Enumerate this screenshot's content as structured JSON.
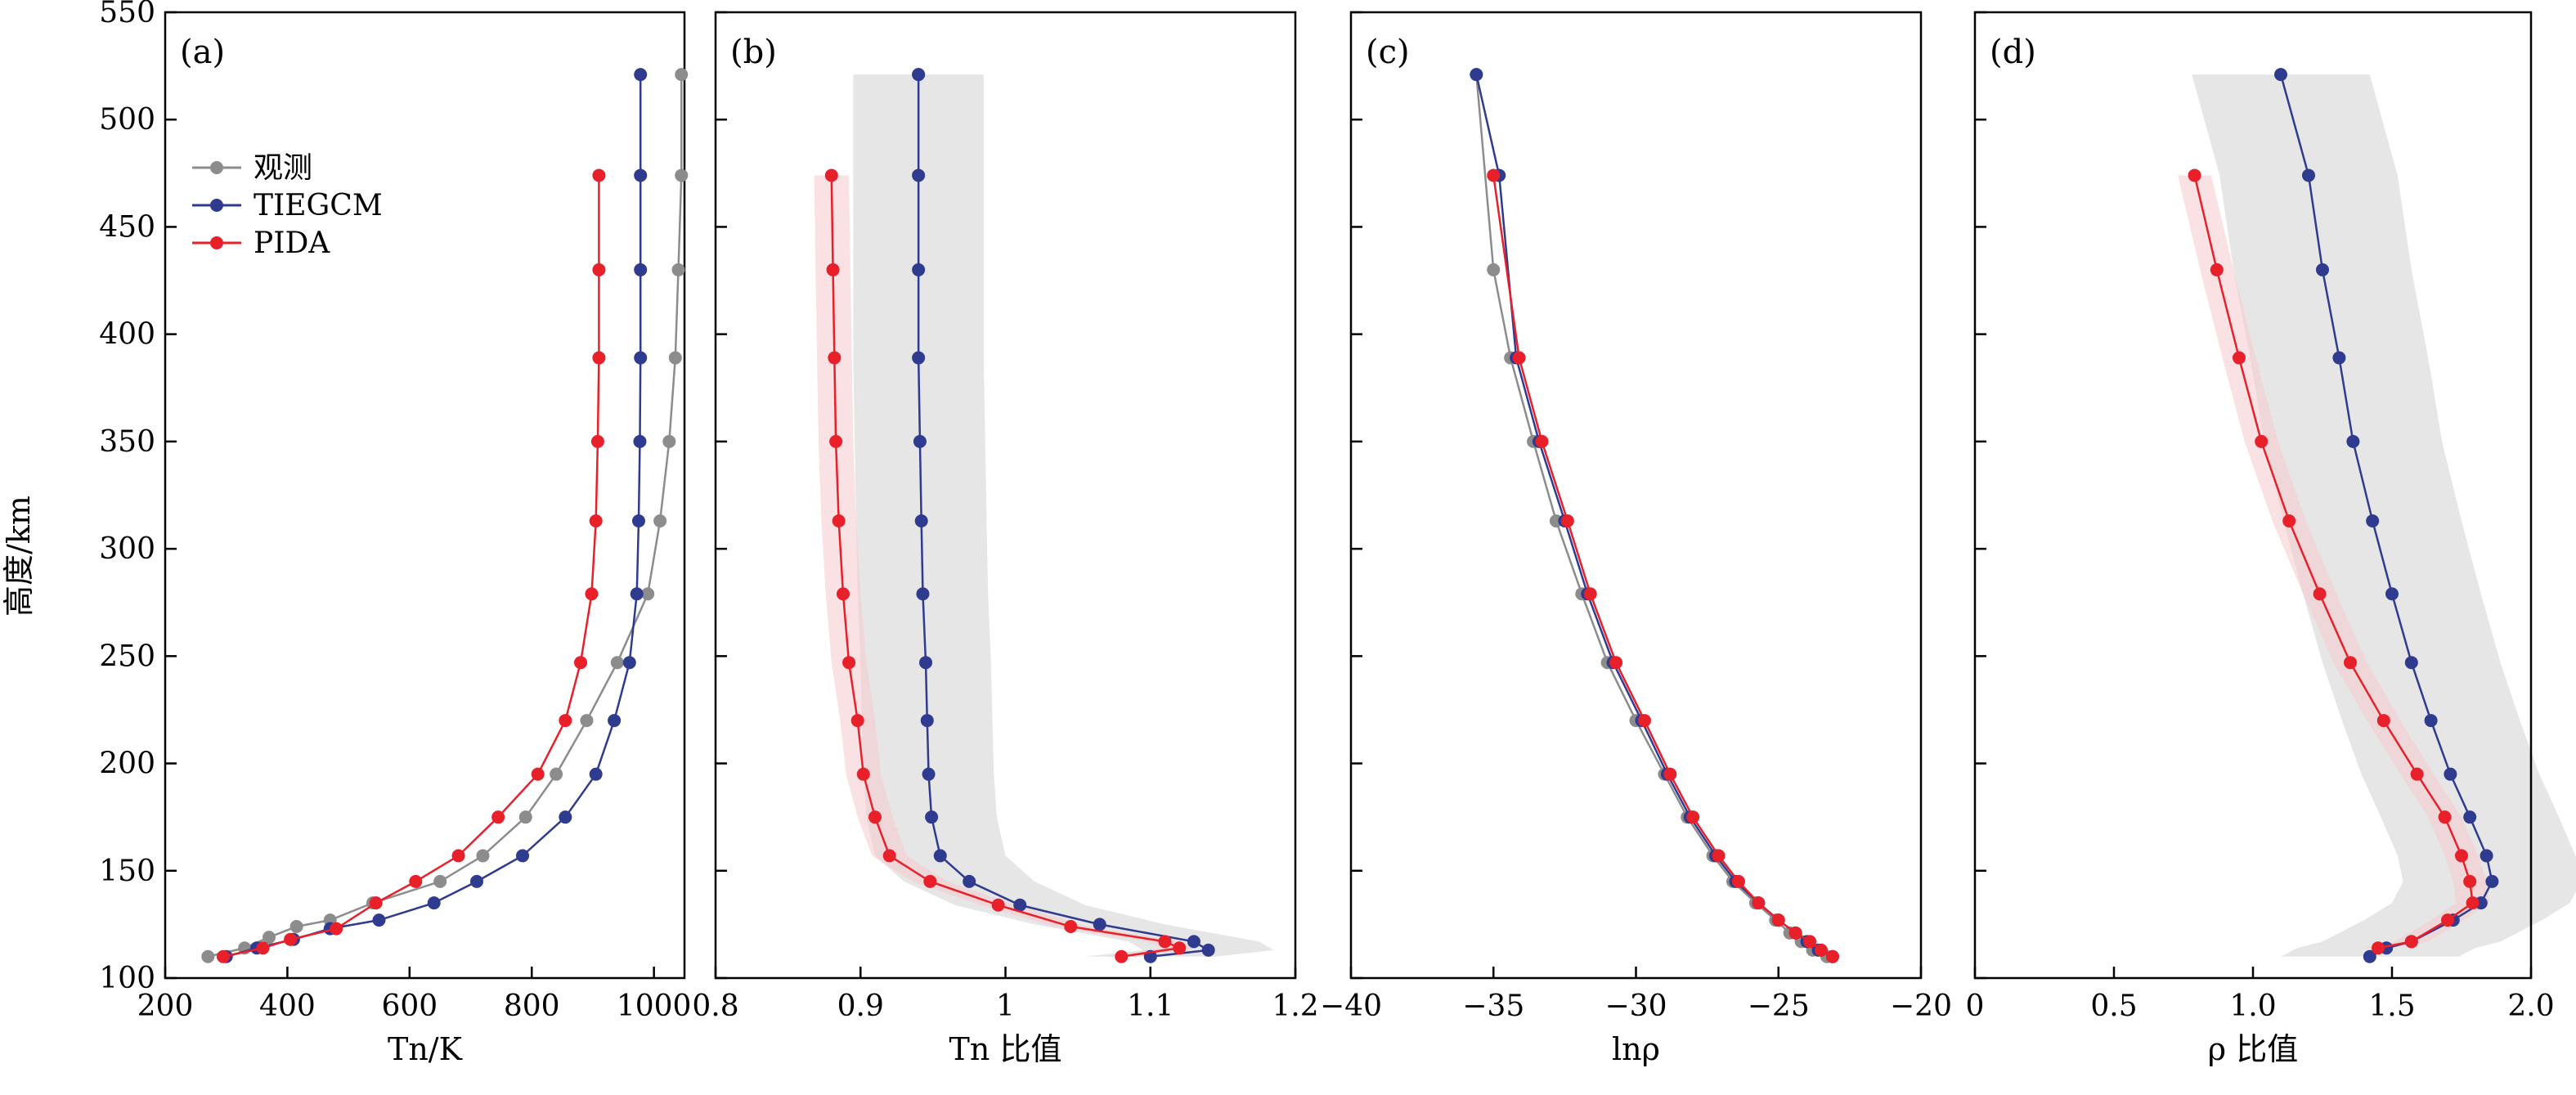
{
  "figure": {
    "ylabel": "高度/km",
    "yticks": [
      100,
      150,
      200,
      250,
      300,
      350,
      400,
      450,
      500,
      550
    ],
    "ylim": [
      100,
      550
    ]
  },
  "legend": [
    {
      "name": "观测",
      "color": "#8c8c8c"
    },
    {
      "name": "TIEGCM",
      "color": "#2f3b8f"
    },
    {
      "name": "PIDA",
      "color": "#e8202a"
    }
  ],
  "colors": {
    "obs": "#8c8c8c",
    "tiegcm": "#2f3b8f",
    "pida": "#e8202a",
    "band_gray": "#e3e3e3",
    "band_pink": "#f6c9cd"
  },
  "chart_data": [
    {
      "type": "line",
      "panel": "(a)",
      "xlabel": "Tn/K",
      "ylabel": "高度/km",
      "xlim": [
        200,
        1050
      ],
      "xticks": [
        200,
        400,
        600,
        800,
        1000
      ],
      "ylim": [
        100,
        550
      ],
      "series": [
        {
          "name": "观测",
          "x": [
            270,
            330,
            370,
            415,
            470,
            540,
            650,
            720,
            790,
            840,
            890,
            940,
            990,
            1010,
            1025,
            1035,
            1040,
            1045,
            1045
          ],
          "y": [
            110,
            114,
            119,
            124,
            127,
            135,
            145,
            157,
            175,
            195,
            220,
            247,
            279,
            313,
            350,
            389,
            430,
            474,
            521
          ]
        },
        {
          "name": "TIEGCM",
          "x": [
            300,
            350,
            410,
            470,
            550,
            640,
            710,
            785,
            855,
            905,
            935,
            960,
            972,
            975,
            977,
            978,
            978,
            978,
            978
          ],
          "y": [
            110,
            114,
            118,
            123,
            127,
            135,
            145,
            157,
            175,
            195,
            220,
            247,
            279,
            313,
            350,
            389,
            430,
            474,
            521
          ]
        },
        {
          "name": "PIDA",
          "x": [
            295,
            360,
            405,
            480,
            545,
            610,
            680,
            745,
            810,
            855,
            880,
            898,
            905,
            908,
            910,
            910,
            910
          ],
          "y": [
            110,
            114,
            118,
            123,
            135,
            145,
            157,
            175,
            195,
            220,
            247,
            279,
            313,
            350,
            389,
            430,
            474
          ]
        }
      ]
    },
    {
      "type": "line",
      "panel": "(b)",
      "xlabel": "Tn 比值",
      "ylabel": "高度/km",
      "xlim": [
        0.8,
        1.2
      ],
      "xticks": [
        0.8,
        0.9,
        1.0,
        1.1,
        1.2
      ],
      "ylim": [
        100,
        550
      ],
      "series": [
        {
          "name": "TIEGCM",
          "x": [
            1.1,
            1.14,
            1.13,
            1.065,
            1.01,
            0.975,
            0.955,
            0.949,
            0.947,
            0.946,
            0.945,
            0.943,
            0.942,
            0.941,
            0.94,
            0.94,
            0.94,
            0.94,
            0.94
          ],
          "y": [
            110,
            113,
            117,
            125,
            134,
            145,
            157,
            175,
            195,
            220,
            247,
            279,
            313,
            350,
            389,
            430,
            474,
            521,
            521
          ]
        },
        {
          "name": "PIDA",
          "x": [
            1.08,
            1.12,
            1.11,
            1.045,
            0.995,
            0.948,
            0.92,
            0.91,
            0.902,
            0.898,
            0.892,
            0.888,
            0.885,
            0.883,
            0.882,
            0.881,
            0.88
          ],
          "y": [
            110,
            114,
            117,
            124,
            134,
            145,
            157,
            175,
            195,
            220,
            247,
            279,
            313,
            350,
            389,
            430,
            474
          ]
        }
      ]
    },
    {
      "type": "line",
      "panel": "(c)",
      "xlabel": "lnρ",
      "ylabel": "高度/km",
      "xlim": [
        -40,
        -20
      ],
      "xticks": [
        -40,
        -35,
        -30,
        -25,
        -20
      ],
      "ylim": [
        100,
        550
      ],
      "series": [
        {
          "name": "观测",
          "x": [
            -23.3,
            -23.8,
            -24.2,
            -24.6,
            -25.1,
            -25.8,
            -26.6,
            -27.3,
            -28.2,
            -29.0,
            -30.0,
            -31.0,
            -31.9,
            -32.8,
            -33.6,
            -34.4,
            -35.0,
            -35.6
          ],
          "y": [
            110,
            113,
            117,
            121,
            127,
            135,
            145,
            157,
            175,
            195,
            220,
            247,
            279,
            313,
            350,
            389,
            430,
            521
          ]
        },
        {
          "name": "TIEGCM",
          "x": [
            -23.1,
            -23.6,
            -24.0,
            -24.4,
            -25.0,
            -25.7,
            -26.5,
            -27.2,
            -28.1,
            -28.9,
            -29.8,
            -30.8,
            -31.7,
            -32.5,
            -33.4,
            -34.2,
            -34.8,
            -35.6
          ],
          "y": [
            110,
            113,
            117,
            121,
            127,
            135,
            145,
            157,
            175,
            195,
            220,
            247,
            279,
            313,
            350,
            389,
            474,
            521
          ]
        },
        {
          "name": "PIDA",
          "x": [
            -23.1,
            -23.5,
            -23.9,
            -24.4,
            -25.0,
            -25.7,
            -26.4,
            -27.1,
            -28.0,
            -28.8,
            -29.7,
            -30.7,
            -31.6,
            -32.4,
            -33.3,
            -34.1,
            -35.0
          ],
          "y": [
            110,
            113,
            117,
            121,
            127,
            135,
            145,
            157,
            175,
            195,
            220,
            247,
            279,
            313,
            350,
            389,
            474
          ]
        }
      ]
    },
    {
      "type": "line",
      "panel": "(d)",
      "xlabel": "ρ 比值",
      "ylabel": "高度/km",
      "xlim": [
        0,
        2.0
      ],
      "xticks": [
        0,
        0.5,
        1.0,
        1.5,
        2.0
      ],
      "xtick_labels": [
        "0",
        "0.5",
        "1.0",
        "1.5",
        "2.0"
      ],
      "ylim": [
        100,
        550
      ],
      "series": [
        {
          "name": "TIEGCM",
          "x": [
            1.42,
            1.48,
            1.57,
            1.72,
            1.82,
            1.86,
            1.84,
            1.78,
            1.71,
            1.64,
            1.57,
            1.5,
            1.43,
            1.36,
            1.31,
            1.25,
            1.2,
            1.1
          ],
          "y": [
            110,
            114,
            117,
            127,
            135,
            145,
            157,
            175,
            195,
            220,
            247,
            279,
            313,
            350,
            389,
            430,
            474,
            521
          ]
        },
        {
          "name": "PIDA",
          "x": [
            1.45,
            1.57,
            1.7,
            1.79,
            1.78,
            1.75,
            1.69,
            1.59,
            1.47,
            1.35,
            1.24,
            1.13,
            1.03,
            0.95,
            0.87,
            0.79
          ],
          "y": [
            114,
            117,
            127,
            135,
            145,
            157,
            175,
            195,
            220,
            247,
            279,
            313,
            350,
            389,
            430,
            474
          ]
        }
      ]
    }
  ]
}
